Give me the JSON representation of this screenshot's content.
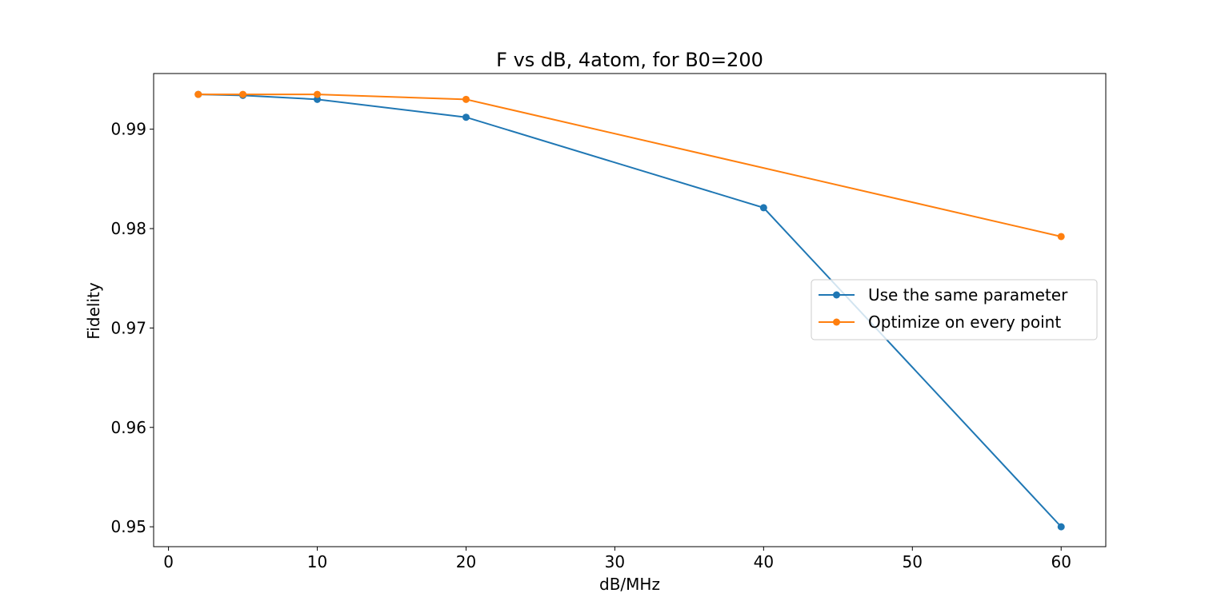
{
  "chart_data": {
    "type": "line",
    "title": "F vs dB, 4atom, for B0=200",
    "xlabel": "dB/MHz",
    "ylabel": "Fidelity",
    "xlim": [
      -1,
      63
    ],
    "ylim": [
      0.948,
      0.9956
    ],
    "xticks": [
      0,
      10,
      20,
      30,
      40,
      50,
      60
    ],
    "xtick_labels": [
      "0",
      "10",
      "20",
      "30",
      "40",
      "50",
      "60"
    ],
    "yticks": [
      0.95,
      0.96,
      0.97,
      0.98,
      0.99
    ],
    "ytick_labels": [
      "0.95",
      "0.96",
      "0.97",
      "0.98",
      "0.99"
    ],
    "grid": false,
    "legend_position": "center-right",
    "series": [
      {
        "name": "Use the same parameter",
        "color": "#1f77b4",
        "x": [
          2,
          5,
          10,
          20,
          40,
          60
        ],
        "y": [
          0.9935,
          0.9934,
          0.993,
          0.9912,
          0.9821,
          0.95
        ]
      },
      {
        "name": "Optimize on every point",
        "color": "#ff7f0e",
        "x": [
          2,
          5,
          10,
          20,
          60
        ],
        "y": [
          0.9935,
          0.9935,
          0.9935,
          0.993,
          0.9792
        ]
      }
    ]
  }
}
